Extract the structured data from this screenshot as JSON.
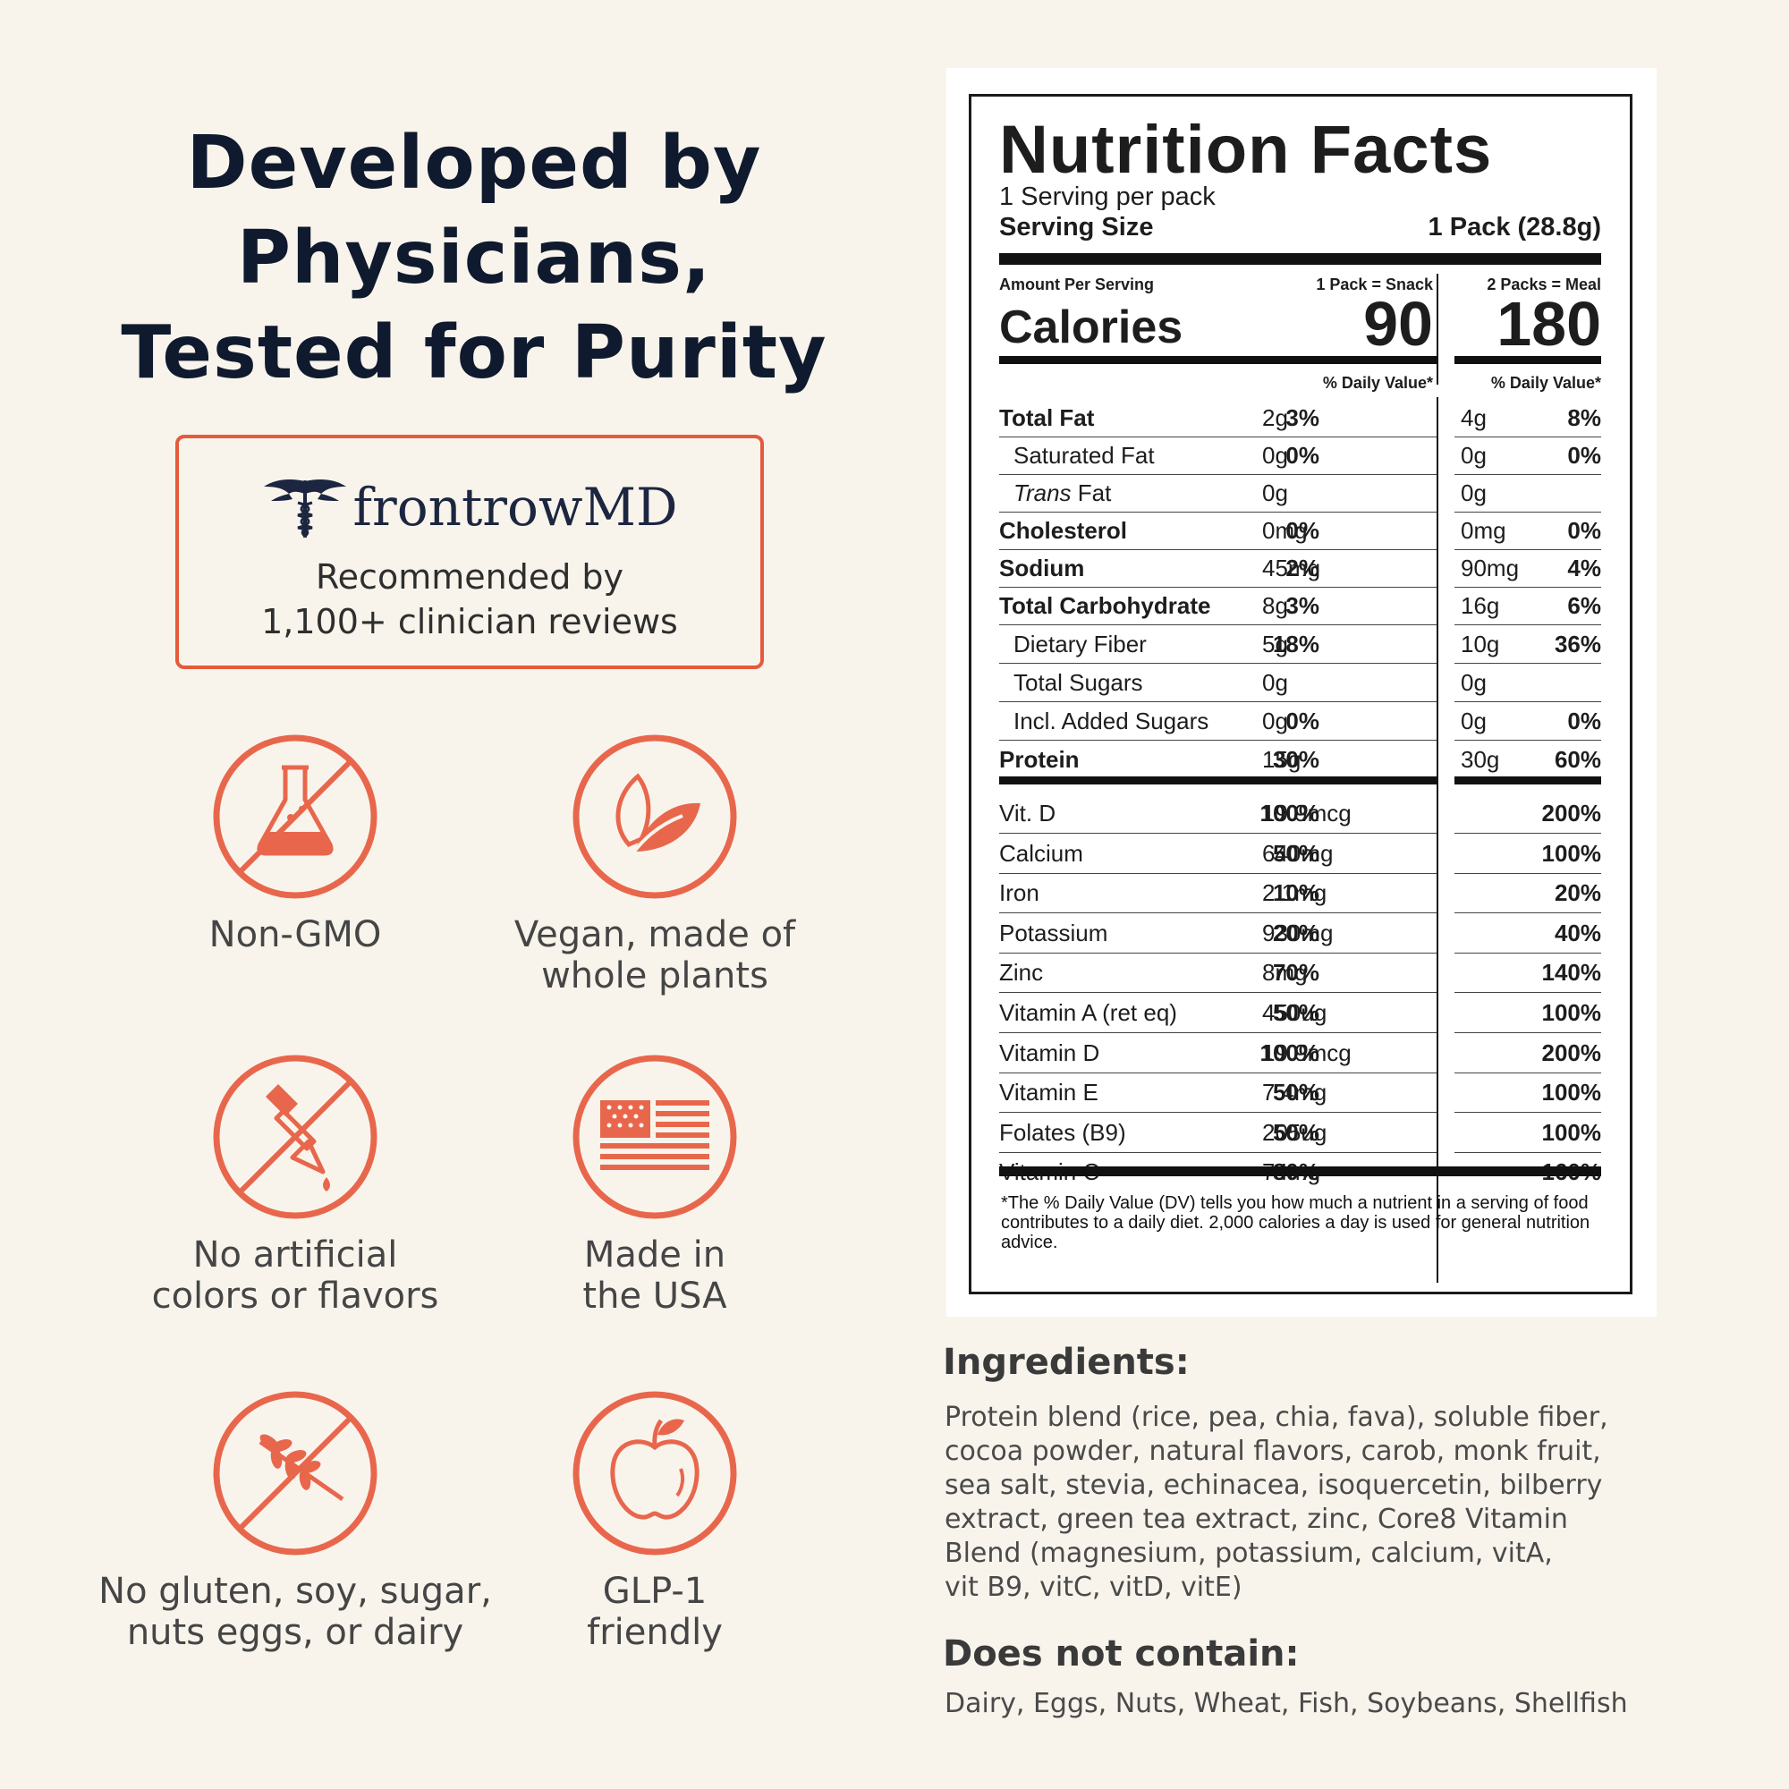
{
  "headline": [
    "Developed by",
    "Physicians,",
    "Tested for Purity"
  ],
  "endorsement": {
    "brand": "frontrowMD",
    "line1": "Recommended by",
    "line2": "1,100+ clinician reviews"
  },
  "accent_color": "#e8674c",
  "badges": [
    {
      "icon": "flask-crossed-icon",
      "label_lines": [
        "Non-GMO"
      ]
    },
    {
      "icon": "leaf-icon",
      "label_lines": [
        "Vegan, made of",
        "whole plants"
      ]
    },
    {
      "icon": "dropper-crossed-icon",
      "label_lines": [
        "No artificial",
        "colors or flavors"
      ]
    },
    {
      "icon": "usa-flag-icon",
      "label_lines": [
        "Made in",
        "the USA"
      ]
    },
    {
      "icon": "wheat-crossed-icon",
      "label_lines": [
        "No gluten, soy, sugar,",
        "nuts eggs, or dairy"
      ]
    },
    {
      "icon": "apple-icon",
      "label_lines": [
        "GLP-1",
        "friendly"
      ]
    }
  ],
  "nutrition": {
    "title": "Nutrition Facts",
    "servings": "1 Serving per pack",
    "serving_size_label": "Serving Size",
    "serving_size_value": "1 Pack (28.8g)",
    "amount_per_serving": "Amount Per Serving",
    "col1_header": "1 Pack = Snack",
    "col2_header": "2 Packs = Meal",
    "calories_label": "Calories",
    "calories_1": "90",
    "calories_2": "180",
    "dv_header": "% Daily Value*",
    "macros": [
      {
        "name": "Total Fat",
        "bold": true,
        "indent": false,
        "v1": "2g",
        "p1": "3%",
        "v2": "4g",
        "p2": "8%"
      },
      {
        "name": "Saturated Fat",
        "bold": false,
        "indent": true,
        "v1": "0g",
        "p1": "0%",
        "v2": "0g",
        "p2": "0%"
      },
      {
        "name": "Trans Fat",
        "bold": false,
        "indent": true,
        "italic_word": "Trans",
        "v1": "0g",
        "p1": "",
        "v2": "0g",
        "p2": ""
      },
      {
        "name": "Cholesterol",
        "bold": true,
        "indent": false,
        "v1": "0mg",
        "p1": "0%",
        "v2": "0mg",
        "p2": "0%"
      },
      {
        "name": "Sodium",
        "bold": true,
        "indent": false,
        "v1": "45mg",
        "p1": "2%",
        "v2": "90mg",
        "p2": "4%"
      },
      {
        "name": "Total Carbohydrate",
        "bold": true,
        "indent": false,
        "v1": "8g",
        "p1": "3%",
        "v2": "16g",
        "p2": "6%"
      },
      {
        "name": "Dietary Fiber",
        "bold": false,
        "indent": true,
        "v1": "5g",
        "p1": "18%",
        "v2": "10g",
        "p2": "36%"
      },
      {
        "name": "Total Sugars",
        "bold": false,
        "indent": true,
        "v1": "0g",
        "p1": "",
        "v2": "0g",
        "p2": ""
      },
      {
        "name": "Incl. Added Sugars",
        "bold": false,
        "indent": true,
        "v1": "0g",
        "p1": "0%",
        "v2": "0g",
        "p2": "0%"
      },
      {
        "name": "Protein",
        "bold": true,
        "indent": false,
        "v1": "15g",
        "p1": "30%",
        "v2": "30g",
        "p2": "60%"
      }
    ],
    "vitamins": [
      {
        "name": "Vit. D",
        "v1": "19.9mcg",
        "p1": "100%",
        "p2": "200%"
      },
      {
        "name": "Calcium",
        "v1": "640mg",
        "p1": "50%",
        "p2": "100%"
      },
      {
        "name": "Iron",
        "v1": "2.1mg",
        "p1": "10%",
        "p2": "20%"
      },
      {
        "name": "Potassium",
        "v1": "930mg",
        "p1": "20%",
        "p2": "40%"
      },
      {
        "name": "Zinc",
        "v1": "8mg",
        "p1": "70%",
        "p2": "140%"
      },
      {
        "name": "Vitamin A (ret eq)",
        "v1": "450ug",
        "p1": "50%",
        "p2": "100%"
      },
      {
        "name": "Vitamin D",
        "v1": "19.9mcg",
        "p1": "100%",
        "p2": "200%"
      },
      {
        "name": "Vitamin E",
        "v1": "7.4mg",
        "p1": "50%",
        "p2": "100%"
      },
      {
        "name": "Folates (B9)",
        "v1": "205ug",
        "p1": "50%",
        "p2": "100%"
      },
      {
        "name": "Vitamin C",
        "v1": "74mg",
        "p1": "80%",
        "p2": "160%"
      }
    ],
    "footnote": "*The % Daily Value (DV) tells you how much a nutrient in a serving of food contributes to a daily diet. 2,000 calories a day is used for general nutrition advice."
  },
  "ingredients": {
    "title": "Ingredients:",
    "text": "Protein blend (rice, pea, chia, fava), soluble fiber,\ncocoa powder, natural flavors, carob, monk fruit,\nsea salt, stevia, echinacea, isoquercetin, bilberry\nextract, green tea extract, zinc, Core8 Vitamin\nBlend (magnesium, potassium, calcium, vitA,\nvit B9, vitC, vitD, vitE)"
  },
  "does_not_contain": {
    "title": "Does not contain:",
    "text": "Dairy, Eggs, Nuts, Wheat, Fish, Soybeans, Shellfish"
  }
}
